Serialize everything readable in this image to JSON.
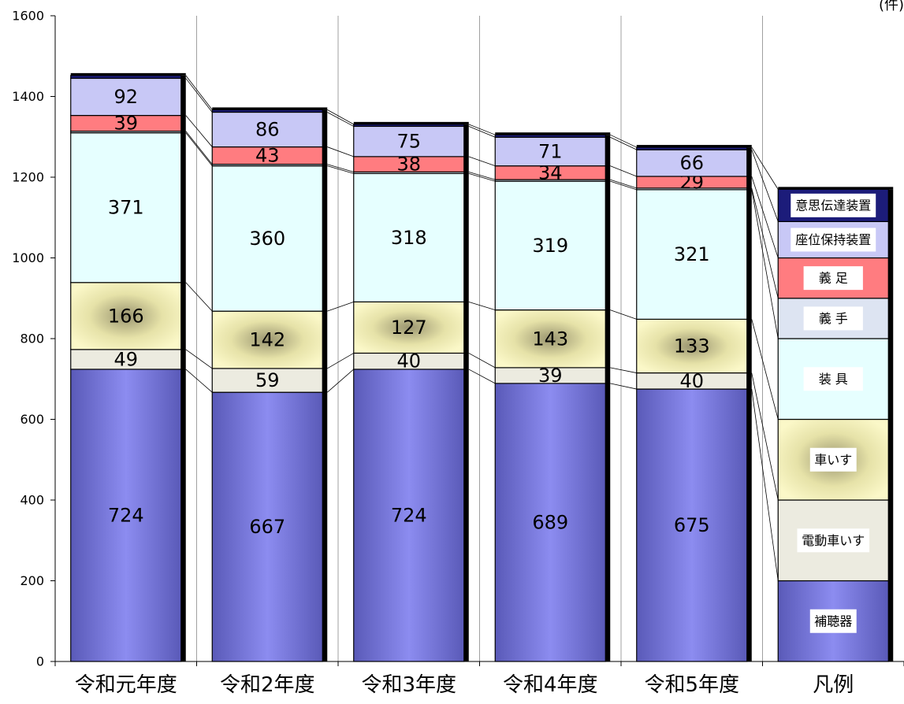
{
  "unit_label": "(件)",
  "chart_data": {
    "type": "bar",
    "stacked": true,
    "categories": [
      "令和元年度",
      "令和2年度",
      "令和3年度",
      "令和4年度",
      "令和5年度"
    ],
    "legend_column_label": "凡例",
    "ylim": [
      0,
      1600
    ],
    "y_ticks": [
      0,
      200,
      400,
      600,
      800,
      1000,
      1200,
      1400,
      1600
    ],
    "grid": true,
    "legend_position": "right",
    "series": [
      {
        "name": "補聴器",
        "values": [
          724,
          667,
          724,
          689,
          675
        ],
        "color": "#7b7bd9",
        "legend_height": 200
      },
      {
        "name": "電動車いす",
        "values": [
          49,
          59,
          40,
          39,
          40
        ],
        "color": "#ecebe0",
        "legend_height": 200
      },
      {
        "name": "車いす",
        "values": [
          166,
          142,
          127,
          143,
          133
        ],
        "color": "#f7f2b3",
        "legend_height": 200
      },
      {
        "name": "装具",
        "values": [
          371,
          360,
          318,
          319,
          321
        ],
        "color": "#e6ffff",
        "legend_height": 200
      },
      {
        "name": "義手",
        "values": [
          4,
          4,
          4,
          4,
          4
        ],
        "color": "#dde4f2",
        "legend_height": 100,
        "show_values": false
      },
      {
        "name": "義足",
        "values": [
          39,
          43,
          38,
          34,
          29
        ],
        "color": "#ff7c80",
        "legend_height": 100
      },
      {
        "name": "座位保持装置",
        "values": [
          92,
          86,
          75,
          71,
          66
        ],
        "color": "#c8c8f6",
        "legend_height": 90
      },
      {
        "name": "意思伝達装置",
        "values": [
          7,
          6,
          5,
          6,
          6
        ],
        "color": "#1c1c7a",
        "legend_height": 80,
        "show_values": false
      }
    ]
  }
}
